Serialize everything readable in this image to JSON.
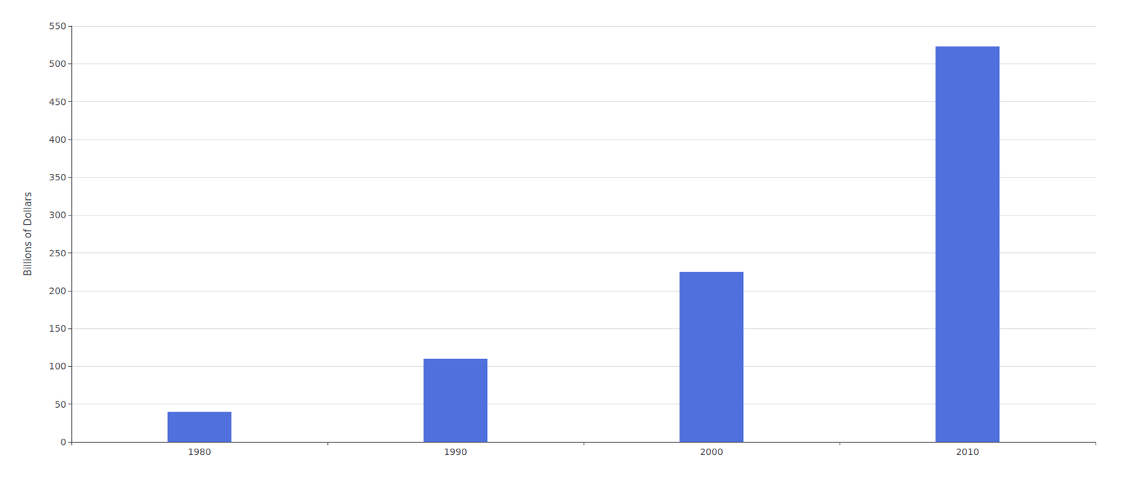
{
  "chart_data": {
    "type": "bar",
    "categories": [
      "1980",
      "1990",
      "2000",
      "2010"
    ],
    "values": [
      40,
      110,
      225,
      523
    ],
    "ylabel": "Billions of Dollars",
    "ylim": [
      0,
      550
    ],
    "yticks": [
      0,
      50,
      100,
      150,
      200,
      250,
      300,
      350,
      400,
      450,
      500,
      550
    ],
    "grid": true
  }
}
